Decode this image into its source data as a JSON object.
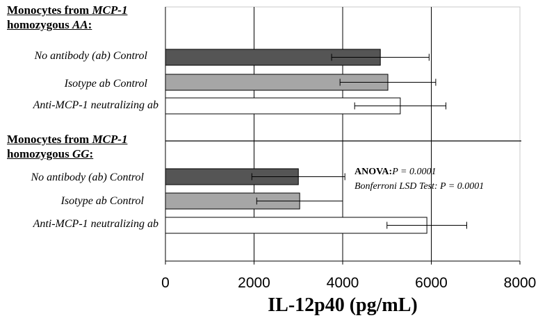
{
  "chart_data": {
    "type": "bar",
    "orientation": "horizontal",
    "xlabel": "IL-12p40 (pg/mL)",
    "xlim": [
      0,
      8000
    ],
    "xticks": [
      0,
      2000,
      4000,
      6000,
      8000
    ],
    "grid": "vertical",
    "groups": [
      {
        "title_prefix": "Monocytes from ",
        "title_gene": "MCP-1",
        "title_line2_prefix": "homozygous ",
        "title_genotype": "AA",
        "title_suffix": ":",
        "bars": [
          {
            "label": "No antibody (ab) Control",
            "value": 4850,
            "error": 1100,
            "color": "#555555"
          },
          {
            "label": "Isotype ab Control",
            "value": 5020,
            "error": 1080,
            "color": "#a6a6a6"
          },
          {
            "label": "Anti-MCP-1 neutralizing ab",
            "value": 5300,
            "error": 1030,
            "color": "#ffffff"
          }
        ]
      },
      {
        "title_prefix": "Monocytes from ",
        "title_gene": "MCP-1",
        "title_line2_prefix": "homozygous ",
        "title_genotype": "GG",
        "title_suffix": ":",
        "bars": [
          {
            "label": "No antibody (ab) Control",
            "value": 3000,
            "error": 1050,
            "color": "#555555"
          },
          {
            "label": "Isotype ab Control",
            "value": 3030,
            "error": 970,
            "color": "#a6a6a6"
          },
          {
            "label": "Anti-MCP-1 neutralizing ab",
            "value": 5900,
            "error": 900,
            "color": "#ffffff"
          }
        ]
      }
    ],
    "annotations": {
      "anova_label": "ANOVA:",
      "anova_p": "P = 0.0001",
      "bonferroni_label": "Bonferroni LSD Test:",
      "bonferroni_p": "P = 0.0001"
    }
  }
}
